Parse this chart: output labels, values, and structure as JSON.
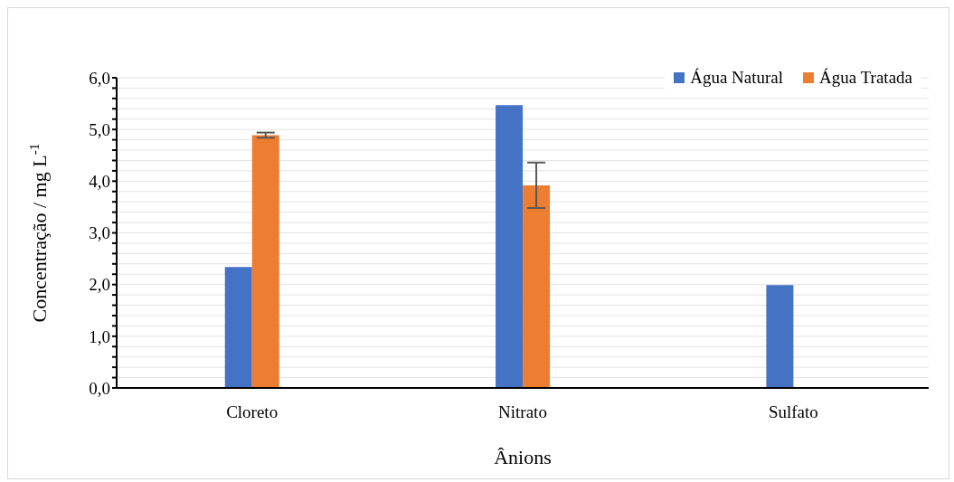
{
  "chart_data": {
    "type": "bar",
    "xlabel": "Ânions",
    "ylabel": "Concentração / mg L$^{-1}$",
    "categories": [
      "Cloreto",
      "Nitrato",
      "Sulfato"
    ],
    "series": [
      {
        "name": "Água Natural",
        "color": "#4472c4",
        "values": [
          2.34,
          5.47,
          1.99
        ]
      },
      {
        "name": "Água Tratada",
        "color": "#ed7d31",
        "values": [
          4.89,
          3.92,
          null
        ],
        "errors": [
          0.05,
          0.44,
          null
        ]
      }
    ],
    "ylim": [
      0,
      6
    ],
    "yticks": [
      {
        "value": 0,
        "label": "0,0"
      },
      {
        "value": 0.2,
        "label": null
      },
      {
        "value": 0.4,
        "label": null
      },
      {
        "value": 0.6,
        "label": null
      },
      {
        "value": 0.8,
        "label": null
      },
      {
        "value": 1,
        "label": "1,0"
      },
      {
        "value": 1.2,
        "label": null
      },
      {
        "value": 1.4,
        "label": null
      },
      {
        "value": 1.6,
        "label": null
      },
      {
        "value": 1.8,
        "label": null
      },
      {
        "value": 2,
        "label": "2,0"
      },
      {
        "value": 2.2,
        "label": null
      },
      {
        "value": 2.4,
        "label": null
      },
      {
        "value": 2.6,
        "label": null
      },
      {
        "value": 2.8,
        "label": null
      },
      {
        "value": 3,
        "label": "3,0"
      },
      {
        "value": 3.2,
        "label": null
      },
      {
        "value": 3.4,
        "label": null
      },
      {
        "value": 3.6,
        "label": null
      },
      {
        "value": 3.8,
        "label": null
      },
      {
        "value": 4,
        "label": "4,0"
      },
      {
        "value": 4.2,
        "label": null
      },
      {
        "value": 4.4,
        "label": null
      },
      {
        "value": 4.6,
        "label": null
      },
      {
        "value": 4.8,
        "label": null
      },
      {
        "value": 5,
        "label": "5,0"
      },
      {
        "value": 5.2,
        "label": null
      },
      {
        "value": 5.4,
        "label": null
      },
      {
        "value": 5.6,
        "label": null
      },
      {
        "value": 5.8,
        "label": null
      },
      {
        "value": 6,
        "label": "6,0"
      }
    ],
    "grid": "y",
    "legend": "top right"
  }
}
